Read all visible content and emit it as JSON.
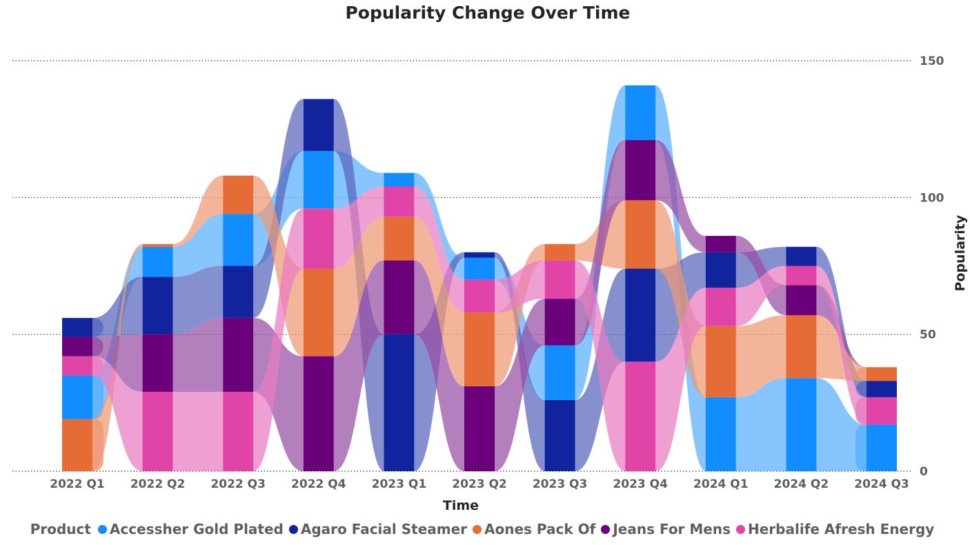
{
  "chart_data": {
    "type": "ribbon",
    "title": "Popularity Change Over Time",
    "xlabel": "Time",
    "ylabel": "Popularity",
    "categories": [
      "2022 Q1",
      "2022 Q2",
      "2022 Q3",
      "2022 Q4",
      "2023 Q1",
      "2023 Q2",
      "2023 Q3",
      "2023 Q4",
      "2024 Q1",
      "2024 Q2",
      "2024 Q3"
    ],
    "ylim": [
      0,
      150
    ],
    "yticks": [
      0,
      50,
      100,
      150
    ],
    "grid": true,
    "legend_title": "Product",
    "legend_position": "bottom",
    "series": [
      {
        "name": "Accessher Gold Plated",
        "color": "#118DFF",
        "values": [
          16,
          11,
          19,
          21,
          5,
          8,
          20,
          20,
          27,
          34,
          17
        ]
      },
      {
        "name": "Agaro Facial Steamer",
        "color": "#12239E",
        "values": [
          7,
          21,
          19,
          19,
          50,
          2,
          26,
          34,
          13,
          7,
          6
        ]
      },
      {
        "name": "Aones Pack Of",
        "color": "#E66C37",
        "values": [
          19,
          1,
          14,
          32,
          16,
          27,
          6,
          25,
          26,
          23,
          5
        ]
      },
      {
        "name": "Jeans For Mens",
        "color": "#6B007B",
        "values": [
          7,
          21,
          27,
          42,
          27,
          31,
          17,
          22,
          6,
          11,
          0
        ]
      },
      {
        "name": "Herbalife Afresh Energy",
        "color": "#E044A7",
        "values": [
          7,
          29,
          29,
          22,
          11,
          12,
          14,
          40,
          14,
          7,
          10
        ]
      }
    ]
  }
}
